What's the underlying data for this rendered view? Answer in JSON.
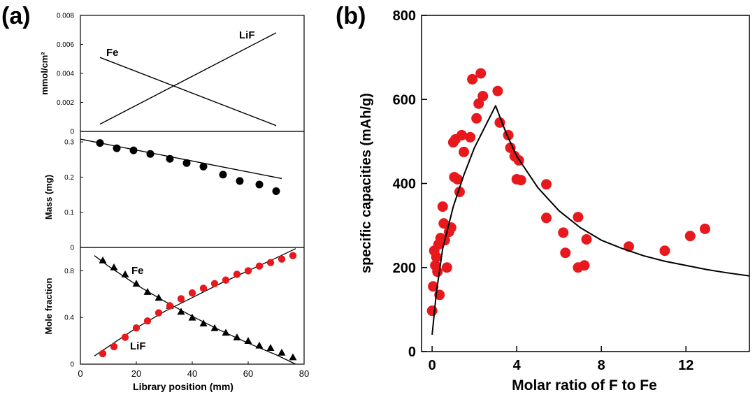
{
  "panel_labels": {
    "a": "(a)",
    "b": "(b)"
  },
  "chart_data": [
    {
      "type": "line",
      "panel": "a-top",
      "ylabel": "mmol/cm²",
      "ylim": [
        0,
        0.008
      ],
      "xlim": [
        0,
        80
      ],
      "yticks": [
        "0",
        "0.002",
        "0.004",
        "0.006",
        "0.008"
      ],
      "series": [
        {
          "name": "Fe",
          "x": [
            7,
            70
          ],
          "y": [
            0.0051,
            0.0004
          ]
        },
        {
          "name": "LiF",
          "x": [
            7,
            70
          ],
          "y": [
            0.0005,
            0.0068
          ]
        }
      ]
    },
    {
      "type": "scatter",
      "panel": "a-middle",
      "ylabel": "Mass (mg)",
      "ylim": [
        0,
        0.33
      ],
      "xlim": [
        0,
        80
      ],
      "yticks": [
        "0",
        "0.1",
        "0.2",
        "0.3"
      ],
      "points": {
        "x": [
          7,
          13,
          19,
          25,
          32,
          38,
          44,
          51,
          57,
          64,
          70
        ],
        "y": [
          0.297,
          0.282,
          0.276,
          0.266,
          0.252,
          0.24,
          0.23,
          0.207,
          0.189,
          0.179,
          0.16
        ]
      },
      "fit": {
        "x": [
          0,
          72
        ],
        "y": [
          0.308,
          0.196
        ]
      },
      "marker_color": "#000000"
    },
    {
      "type": "scatter",
      "panel": "a-bottom",
      "ylabel": "Mole fraction",
      "xlabel": "Library position (mm)",
      "ylim": [
        0,
        1.0
      ],
      "xlim": [
        0,
        80
      ],
      "yticks": [
        "0",
        "0.4",
        "0.8"
      ],
      "xticks": [
        "0",
        "20",
        "40",
        "60",
        "80"
      ],
      "series": [
        {
          "name": "Fe",
          "marker": "triangle",
          "color": "#000000",
          "x": [
            8,
            12,
            16,
            20,
            24,
            28,
            32,
            36,
            40,
            44,
            48,
            52,
            56,
            60,
            64,
            68,
            72,
            76
          ],
          "y": [
            0.89,
            0.83,
            0.77,
            0.69,
            0.62,
            0.57,
            0.5,
            0.45,
            0.4,
            0.35,
            0.31,
            0.27,
            0.23,
            0.2,
            0.16,
            0.14,
            0.1,
            0.06
          ]
        },
        {
          "name": "LiF",
          "marker": "circle",
          "color": "#e8191c",
          "x": [
            8,
            12,
            16,
            20,
            24,
            28,
            32,
            36,
            40,
            44,
            48,
            52,
            56,
            60,
            64,
            68,
            72,
            76
          ],
          "y": [
            0.09,
            0.15,
            0.23,
            0.31,
            0.37,
            0.44,
            0.5,
            0.56,
            0.61,
            0.65,
            0.69,
            0.72,
            0.77,
            0.8,
            0.84,
            0.87,
            0.9,
            0.93
          ]
        }
      ],
      "fits": {
        "Fe": {
          "x": [
            5,
            10,
            20,
            30,
            40,
            50,
            60,
            70,
            77
          ],
          "y": [
            0.93,
            0.84,
            0.68,
            0.54,
            0.41,
            0.29,
            0.18,
            0.08,
            0.0
          ]
        },
        "LiF": {
          "x": [
            5,
            10,
            20,
            30,
            40,
            50,
            60,
            70,
            77
          ],
          "y": [
            0.07,
            0.15,
            0.31,
            0.45,
            0.57,
            0.69,
            0.8,
            0.91,
            0.99
          ]
        }
      }
    },
    {
      "type": "scatter",
      "panel": "b",
      "xlabel": "Molar ratio of F to Fe",
      "ylabel": "specific capacities (mAh/g)",
      "xlim": [
        -0.5,
        15
      ],
      "ylim": [
        0,
        800
      ],
      "xticks": [
        "0",
        "4",
        "8",
        "12"
      ],
      "yticks": [
        "0",
        "200",
        "400",
        "600",
        "800"
      ],
      "marker_color": "#e8191c",
      "points": {
        "x": [
          0.0,
          0.05,
          0.1,
          0.15,
          0.2,
          0.25,
          0.3,
          0.35,
          0.4,
          0.5,
          0.55,
          0.6,
          0.7,
          0.8,
          0.9,
          1.0,
          1.05,
          1.1,
          1.2,
          1.3,
          1.4,
          1.5,
          1.8,
          1.9,
          2.1,
          2.2,
          2.3,
          2.4,
          3.1,
          3.2,
          3.6,
          3.7,
          3.9,
          4.0,
          4.1,
          4.2,
          5.4,
          5.4,
          6.2,
          6.3,
          6.9,
          6.9,
          7.2,
          7.3,
          9.3,
          11.0,
          12.2,
          12.9
        ],
        "y": [
          97,
          155,
          240,
          205,
          225,
          190,
          255,
          135,
          270,
          345,
          305,
          265,
          200,
          285,
          295,
          498,
          415,
          505,
          410,
          380,
          515,
          475,
          510,
          648,
          555,
          590,
          662,
          608,
          620,
          545,
          515,
          485,
          465,
          410,
          455,
          408,
          398,
          318,
          283,
          235,
          320,
          200,
          205,
          267,
          250,
          240,
          275,
          292
        ]
      },
      "fit": {
        "x": [
          0.0,
          0.2,
          0.5,
          1.0,
          1.5,
          2.0,
          2.5,
          3.0,
          3.5,
          4.0,
          5.0,
          6.0,
          7.0,
          8.0,
          9.0,
          10.0,
          11.0,
          12.0,
          13.0,
          14.0,
          15.0
        ],
        "y": [
          40,
          140,
          245,
          345,
          420,
          485,
          535,
          585,
          520,
          465,
          390,
          335,
          295,
          265,
          245,
          228,
          215,
          205,
          195,
          187,
          180
        ]
      }
    }
  ]
}
